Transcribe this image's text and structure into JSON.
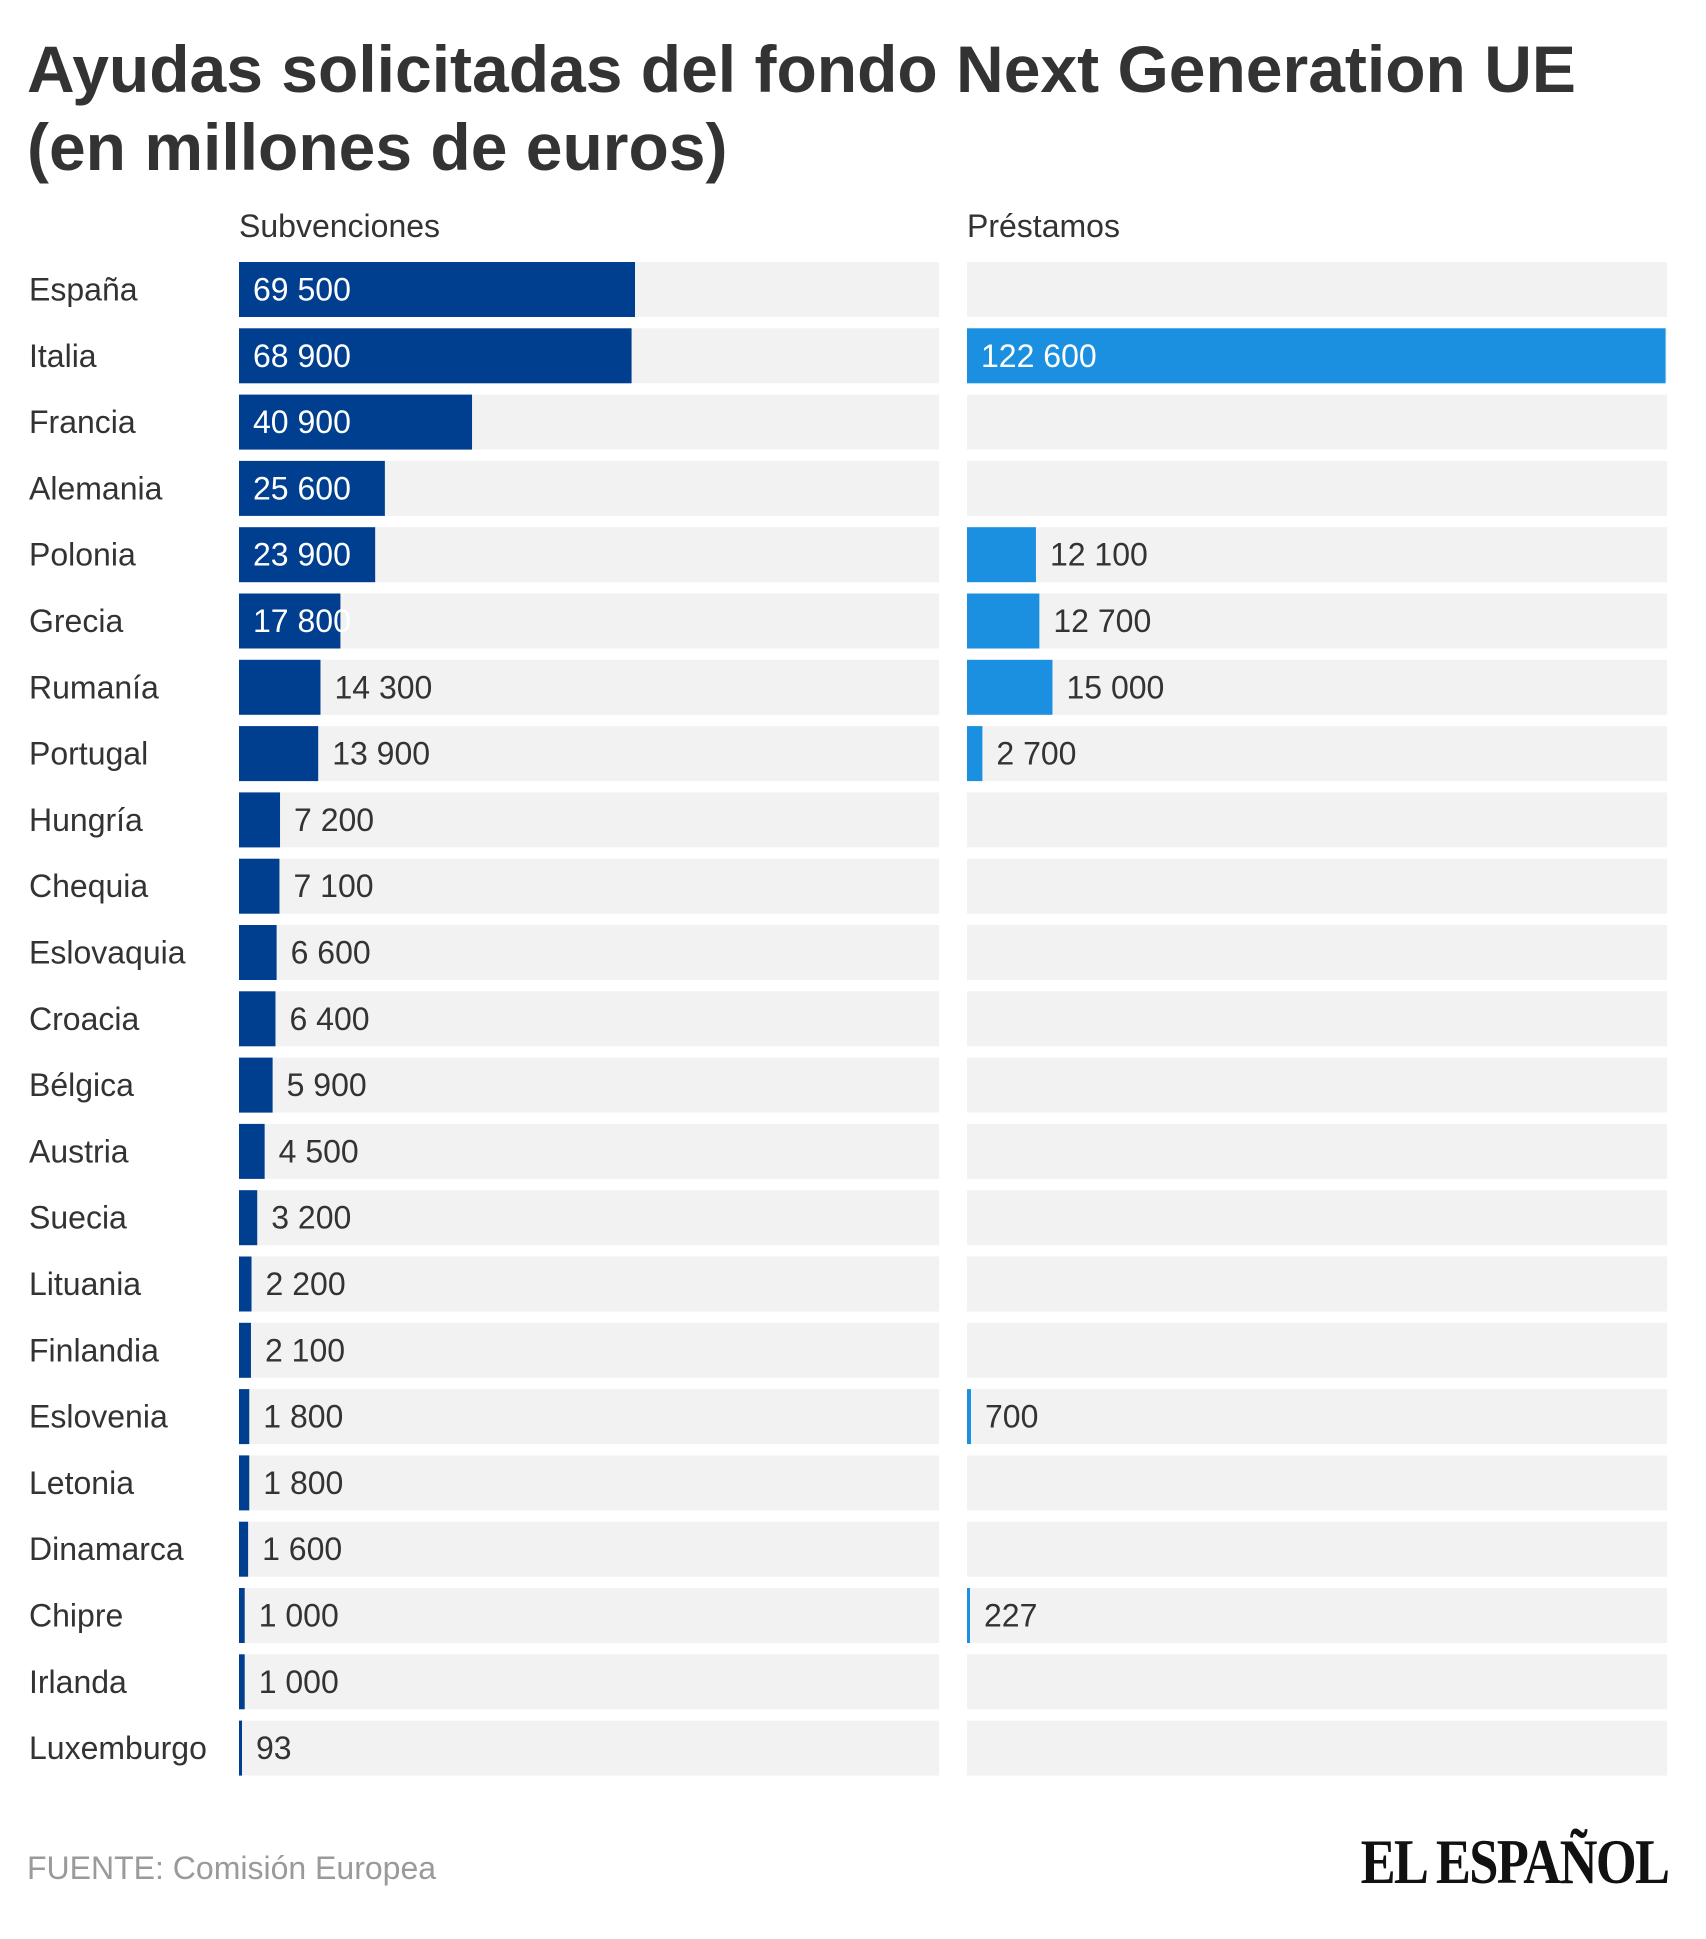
{
  "title": "Ayudas solicitadas del fondo Next Generation UE (en millones de euros)",
  "source": "FUENTE: Comisión Europea",
  "logo": "EL ESPAÑOL",
  "colors": {
    "subvenciones": "#003f8f",
    "prestamos": "#1b8fe0",
    "track": "#f2f2f2",
    "text": "#333333",
    "inside_label": "#ffffff"
  },
  "chart_data": {
    "type": "bar",
    "orientation": "horizontal",
    "categories": [
      "España",
      "Italia",
      "Francia",
      "Alemania",
      "Polonia",
      "Grecia",
      "Rumanía",
      "Portugal",
      "Hungría",
      "Chequia",
      "Eslovaquia",
      "Croacia",
      "Bélgica",
      "Austria",
      "Suecia",
      "Lituania",
      "Finlandia",
      "Eslovenia",
      "Letonia",
      "Dinamarca",
      "Chipre",
      "Irlanda",
      "Luxemburgo"
    ],
    "series": [
      {
        "name": "Subvenciones",
        "values": [
          69500,
          68900,
          40900,
          25600,
          23900,
          17800,
          14300,
          13900,
          7200,
          7100,
          6600,
          6400,
          5900,
          4500,
          3200,
          2200,
          2100,
          1800,
          1800,
          1600,
          1000,
          1000,
          93
        ],
        "labels": [
          "69 500",
          "68 900",
          "40 900",
          "25 600",
          "23 900",
          "17 800",
          "14 300",
          "13 900",
          "7 200",
          "7 100",
          "6 600",
          "6 400",
          "5 900",
          "4 500",
          "3 200",
          "2 200",
          "2 100",
          "1 800",
          "1 800",
          "1 600",
          "1 000",
          "1 000",
          "93"
        ],
        "max": 122600
      },
      {
        "name": "Préstamos",
        "values": [
          null,
          122600,
          null,
          null,
          12100,
          12700,
          15000,
          2700,
          null,
          null,
          null,
          null,
          null,
          null,
          null,
          null,
          null,
          700,
          null,
          null,
          227,
          null,
          null
        ],
        "labels": [
          "",
          "122 600",
          "",
          "",
          "12 100",
          "12 700",
          "15 000",
          "2 700",
          "",
          "",
          "",
          "",
          "",
          "",
          "",
          "",
          "",
          "700",
          "",
          "",
          "227",
          "",
          ""
        ],
        "max": 122600
      }
    ]
  }
}
